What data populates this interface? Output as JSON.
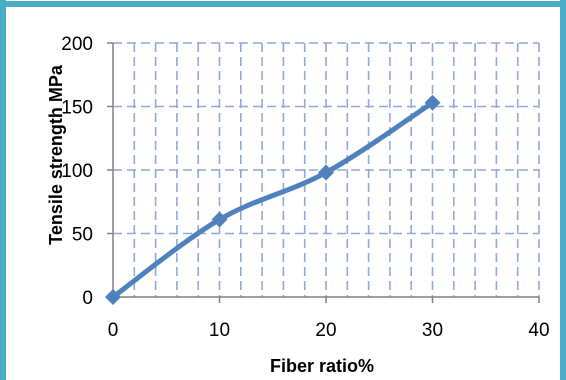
{
  "chart_data": {
    "type": "line",
    "title": "",
    "xlabel": "Fiber ratio%",
    "ylabel": "Tensile strength  MPa",
    "x": [
      0,
      10,
      20,
      30
    ],
    "series": [
      {
        "values": [
          0,
          61,
          98,
          153
        ]
      }
    ],
    "xlim": [
      0,
      40
    ],
    "ylim": [
      0,
      200
    ],
    "x_ticks": [
      "0",
      "10",
      "20",
      "30",
      "40"
    ],
    "y_ticks": [
      "0",
      "50",
      "100",
      "150",
      "200"
    ],
    "grid": true,
    "legend": "none",
    "colors": {
      "line": "#4F81BD",
      "grid": "#8EA9DB",
      "frame": "#4BACC6",
      "axis": "#808080"
    }
  }
}
